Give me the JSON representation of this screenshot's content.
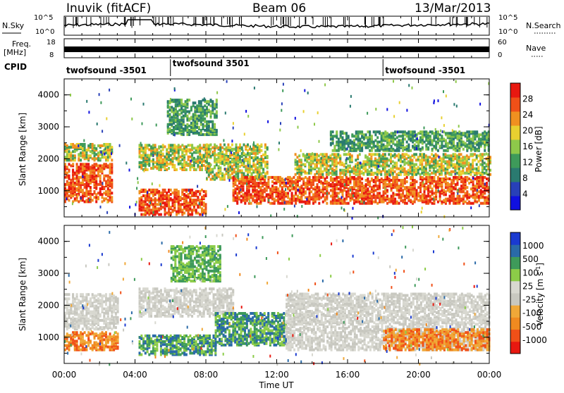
{
  "header": {
    "station": "Inuvik (fitACF)",
    "beam": "Beam 06",
    "date": "13/Mar/2013"
  },
  "status_panels": {
    "nsky_label": "N.Sky",
    "nsky_ticks": [
      "10^5",
      "10^0"
    ],
    "nsearch_label": "N.Search",
    "nsearch_ticks": [
      "10^5",
      "10^0"
    ],
    "freq_label": "Freq.",
    "freq_unit": "[MHz]",
    "freq_ticks": [
      "18",
      "8"
    ],
    "nave_label": "Nave",
    "nave_ticks": [
      "60",
      "0"
    ],
    "cpid_label": "CPID",
    "cpid_segments": [
      {
        "start_hour": 0.0,
        "label": "twofsound -3501"
      },
      {
        "start_hour": 6.0,
        "label": "twofsound 3501"
      },
      {
        "start_hour": 18.0,
        "label": "twofsound -3501"
      }
    ]
  },
  "chart_data": [
    {
      "type": "heatmap",
      "name": "power",
      "ylabel": "Slant Range [km]",
      "x_range_hours": [
        0,
        24
      ],
      "ylim": [
        180,
        4500
      ],
      "y_ticks": [
        "1000",
        "2000",
        "3000",
        "4000"
      ],
      "colorbar": {
        "label": "Power [dB]",
        "ticks": [
          "28",
          "24",
          "20",
          "16",
          "12",
          "8",
          "4"
        ],
        "colors": [
          "#1010e0",
          "#2840b8",
          "#2a7a70",
          "#3e9a5a",
          "#8ec84a",
          "#e8d030",
          "#f09020",
          "#f05018",
          "#e81810"
        ]
      },
      "echo_bands": [
        {
          "x": [
            0,
            2.7
          ],
          "y": [
            700,
            1900
          ],
          "level": "strong"
        },
        {
          "x": [
            0,
            2.7
          ],
          "y": [
            2000,
            2500
          ],
          "level": "medium"
        },
        {
          "x": [
            4.2,
            8.0
          ],
          "y": [
            300,
            1100
          ],
          "level": "strong"
        },
        {
          "x": [
            4.2,
            8.2
          ],
          "y": [
            1700,
            2500
          ],
          "level": "medium"
        },
        {
          "x": [
            5.8,
            8.6
          ],
          "y": [
            2800,
            3900
          ],
          "level": "weak"
        },
        {
          "x": [
            8.0,
            11.5
          ],
          "y": [
            1400,
            2500
          ],
          "level": "medium"
        },
        {
          "x": [
            9.5,
            24
          ],
          "y": [
            650,
            1500
          ],
          "level": "strong"
        },
        {
          "x": [
            13,
            24
          ],
          "y": [
            1550,
            2200
          ],
          "level": "medium"
        },
        {
          "x": [
            15,
            24
          ],
          "y": [
            2300,
            2900
          ],
          "level": "weak"
        }
      ]
    },
    {
      "type": "heatmap",
      "name": "velocity",
      "ylabel": "Slant Range [km]",
      "xlabel": "Time UT",
      "x_range_hours": [
        0,
        24
      ],
      "x_ticks": [
        "00:00",
        "04:00",
        "08:00",
        "12:00",
        "16:00",
        "20:00",
        "00:00"
      ],
      "ylim": [
        180,
        4500
      ],
      "y_ticks": [
        "1000",
        "2000",
        "3000",
        "4000"
      ],
      "colorbar": {
        "label": "Velocity [m s^-1]",
        "ticks": [
          "1000",
          "500",
          "100",
          "25",
          "-25",
          "-100",
          "-500",
          "-1000"
        ],
        "colors": [
          "#e81810",
          "#f05018",
          "#f08a20",
          "#f0a838",
          "#c8c8c0",
          "#d8d8d0",
          "#8ccc48",
          "#3e9a5a",
          "#2a6aa8",
          "#1a3ad0"
        ]
      },
      "echo_bands": [
        {
          "x": [
            0,
            3.0
          ],
          "y": [
            650,
            1200
          ],
          "level": "negative"
        },
        {
          "x": [
            0,
            3.0
          ],
          "y": [
            1300,
            2400
          ],
          "level": "near-zero"
        },
        {
          "x": [
            4.2,
            8.6
          ],
          "y": [
            500,
            1100
          ],
          "level": "positive"
        },
        {
          "x": [
            4.2,
            9.5
          ],
          "y": [
            1700,
            2600
          ],
          "level": "near-zero"
        },
        {
          "x": [
            6.0,
            8.8
          ],
          "y": [
            2800,
            3900
          ],
          "level": "positive-weak"
        },
        {
          "x": [
            8.5,
            12.5
          ],
          "y": [
            800,
            1800
          ],
          "level": "positive"
        },
        {
          "x": [
            12.5,
            24
          ],
          "y": [
            650,
            1400
          ],
          "level": "near-zero"
        },
        {
          "x": [
            12.5,
            24
          ],
          "y": [
            1450,
            2400
          ],
          "level": "near-zero"
        },
        {
          "x": [
            18,
            24
          ],
          "y": [
            650,
            1300
          ],
          "level": "negative"
        }
      ]
    }
  ]
}
